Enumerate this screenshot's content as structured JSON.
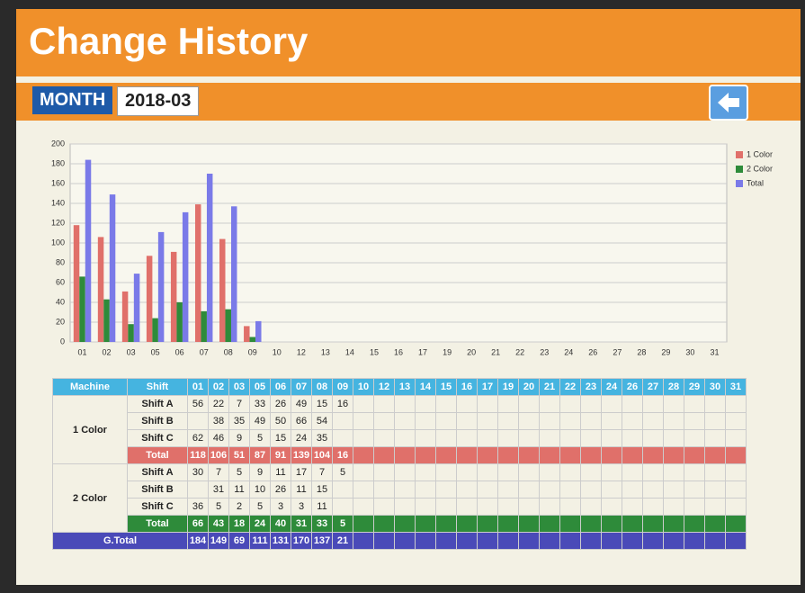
{
  "header": {
    "title": "Change History",
    "month_label": "MONTH",
    "month": "2018-03"
  },
  "chart_data": {
    "type": "bar",
    "categories": [
      "01",
      "02",
      "03",
      "05",
      "06",
      "07",
      "08",
      "09",
      "10",
      "12",
      "13",
      "14",
      "15",
      "16",
      "17",
      "19",
      "20",
      "21",
      "22",
      "23",
      "24",
      "26",
      "27",
      "28",
      "29",
      "30",
      "31"
    ],
    "series": [
      {
        "name": "1 Color",
        "color": "#e0706a",
        "values": [
          118,
          106,
          51,
          87,
          91,
          139,
          104,
          16,
          null,
          null,
          null,
          null,
          null,
          null,
          null,
          null,
          null,
          null,
          null,
          null,
          null,
          null,
          null,
          null,
          null,
          null,
          null
        ]
      },
      {
        "name": "2 Color",
        "color": "#2e8b3a",
        "values": [
          66,
          43,
          18,
          24,
          40,
          31,
          33,
          5,
          null,
          null,
          null,
          null,
          null,
          null,
          null,
          null,
          null,
          null,
          null,
          null,
          null,
          null,
          null,
          null,
          null,
          null,
          null
        ]
      },
      {
        "name": "Total",
        "color": "#7a7ae8",
        "values": [
          184,
          149,
          69,
          111,
          131,
          170,
          137,
          21,
          null,
          null,
          null,
          null,
          null,
          null,
          null,
          null,
          null,
          null,
          null,
          null,
          null,
          null,
          null,
          null,
          null,
          null,
          null
        ]
      }
    ],
    "ylim": [
      0,
      200
    ],
    "yticks": [
      0,
      20,
      40,
      60,
      80,
      100,
      120,
      140,
      160,
      180,
      200
    ],
    "grid": true,
    "legend": "top-right"
  },
  "table": {
    "headers": [
      "Machine",
      "Shift"
    ],
    "groups": [
      {
        "machine": "1 Color",
        "total_label": "Total",
        "total_color": "#e0706a",
        "rows": [
          {
            "shift": "Shift A",
            "values": [
              56,
              22,
              7,
              33,
              26,
              49,
              15,
              16,
              null,
              null,
              null,
              null,
              null,
              null,
              null,
              null,
              null,
              null,
              null,
              null,
              null,
              null,
              null,
              null,
              null,
              null,
              null
            ]
          },
          {
            "shift": "Shift B",
            "values": [
              null,
              38,
              35,
              49,
              50,
              66,
              54,
              null,
              null,
              null,
              null,
              null,
              null,
              null,
              null,
              null,
              null,
              null,
              null,
              null,
              null,
              null,
              null,
              null,
              null,
              null,
              null
            ]
          },
          {
            "shift": "Shift C",
            "values": [
              62,
              46,
              9,
              5,
              15,
              24,
              35,
              null,
              null,
              null,
              null,
              null,
              null,
              null,
              null,
              null,
              null,
              null,
              null,
              null,
              null,
              null,
              null,
              null,
              null,
              null,
              null
            ]
          }
        ]
      },
      {
        "machine": "2 Color",
        "total_label": "Total",
        "total_color": "#2e8b3a",
        "rows": [
          {
            "shift": "Shift A",
            "values": [
              30,
              7,
              5,
              9,
              11,
              17,
              7,
              5,
              null,
              null,
              null,
              null,
              null,
              null,
              null,
              null,
              null,
              null,
              null,
              null,
              null,
              null,
              null,
              null,
              null,
              null,
              null
            ]
          },
          {
            "shift": "Shift B",
            "values": [
              null,
              31,
              11,
              10,
              26,
              11,
              15,
              null,
              null,
              null,
              null,
              null,
              null,
              null,
              null,
              null,
              null,
              null,
              null,
              null,
              null,
              null,
              null,
              null,
              null,
              null,
              null
            ]
          },
          {
            "shift": "Shift C",
            "values": [
              36,
              5,
              2,
              5,
              3,
              3,
              11,
              null,
              null,
              null,
              null,
              null,
              null,
              null,
              null,
              null,
              null,
              null,
              null,
              null,
              null,
              null,
              null,
              null,
              null,
              null,
              null
            ]
          }
        ]
      }
    ],
    "grand_total_label": "G.Total",
    "grand_total_color": "#4a4ab8"
  }
}
